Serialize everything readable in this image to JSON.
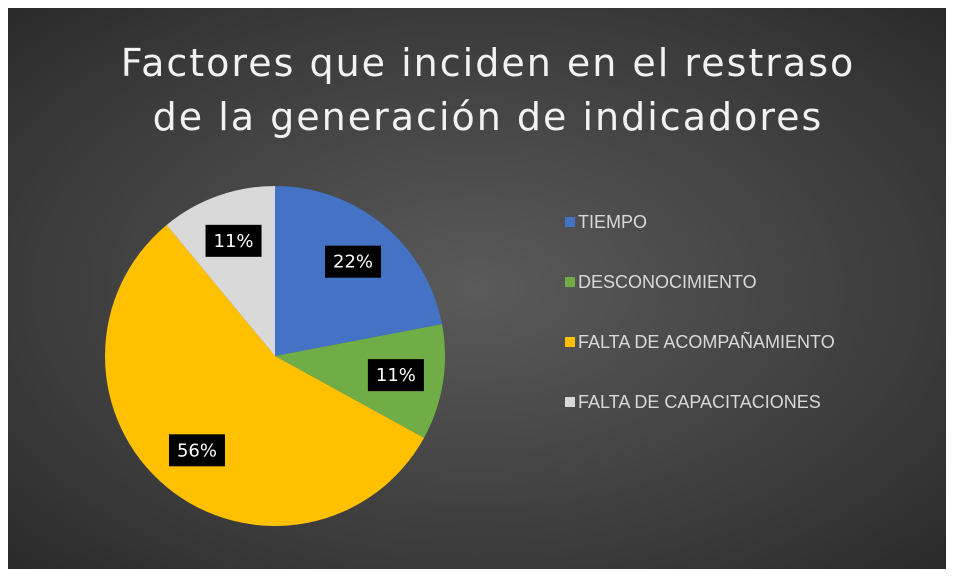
{
  "chart_data": {
    "type": "pie",
    "title": "Factores que inciden en el restraso de la generación de indicadores",
    "categories": [
      "TIEMPO",
      "DESCONOCIMIENTO",
      "FALTA DE ACOMPAÑAMIENTO",
      "FALTA DE CAPACITACIONES"
    ],
    "values": [
      22,
      11,
      56,
      11
    ],
    "value_labels": [
      "22%",
      "11%",
      "56%",
      "11%"
    ],
    "colors": [
      "#4472c4",
      "#70ad47",
      "#ffc000",
      "#d9d9d9"
    ],
    "legend": "right"
  }
}
